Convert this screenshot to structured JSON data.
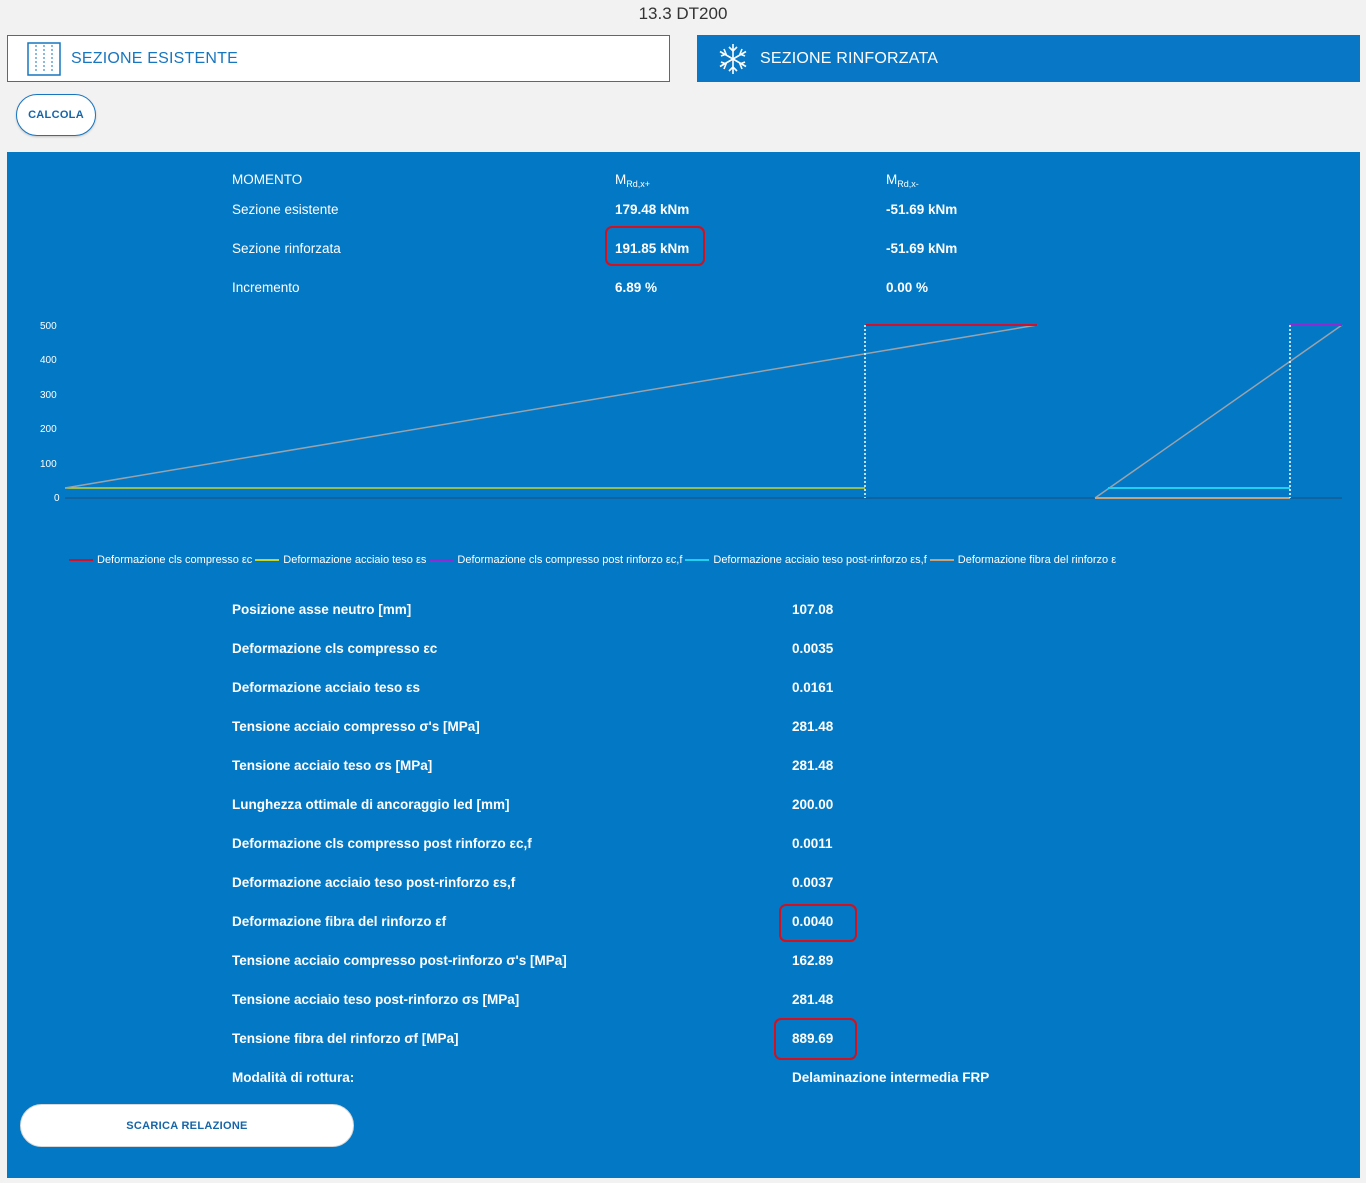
{
  "page": {
    "title": "13.3 DT200"
  },
  "tabs": {
    "existing": {
      "label": "SEZIONE ESISTENTE",
      "icon": "section-columns-icon"
    },
    "reinforced": {
      "label": "SEZIONE RINFORZATA",
      "icon": "snowflake-icon"
    }
  },
  "actions": {
    "calculate_label": "CALCOLA",
    "download_label": "SCARICA RELAZIONE"
  },
  "moment_table": {
    "header": "MOMENTO",
    "col_pos_main": "M",
    "col_pos_sub": "Rd,x+",
    "col_neg_main": "M",
    "col_neg_sub": "Rd,x-",
    "rows": [
      {
        "label": "Sezione esistente",
        "pos": "179.48 kNm",
        "neg": "-51.69 kNm"
      },
      {
        "label": "Sezione rinforzata",
        "pos": "191.85 kNm",
        "neg": "-51.69 kNm"
      },
      {
        "label": "Incremento",
        "pos": "6.89 %",
        "neg": "0.00 %"
      }
    ]
  },
  "chart_data": {
    "type": "line",
    "y_ticks": [
      "500",
      "400",
      "300",
      "200",
      "100",
      "0"
    ],
    "ylim": [
      0,
      500
    ],
    "series": [
      {
        "name": "Deformazione cls compresso εc",
        "color": "#d0112b"
      },
      {
        "name": "Deformazione acciaio teso εs",
        "color": "#c8d42a"
      },
      {
        "name": "Deformazione cls compresso post rinforzo εc,f",
        "color": "#8e2bd6"
      },
      {
        "name": "Deformazione acciaio teso post-rinforzo εs,f",
        "color": "#1fd0f0"
      },
      {
        "name": "Deformazione fibra del rinforzo ε",
        "color": "#c8a27a"
      }
    ],
    "legend_position": "bottom"
  },
  "results": [
    {
      "label": "Posizione asse neutro [mm]",
      "value": "107.08"
    },
    {
      "label": "Deformazione cls compresso εc",
      "value": "0.0035"
    },
    {
      "label": "Deformazione acciaio teso εs",
      "value": "0.0161"
    },
    {
      "label": "Tensione acciaio compresso σ's [MPa]",
      "value": "281.48"
    },
    {
      "label": "Tensione acciaio teso σs [MPa]",
      "value": "281.48"
    },
    {
      "label": "Lunghezza ottimale di ancoraggio led [mm]",
      "value": "200.00"
    },
    {
      "label": "Deformazione cls compresso post rinforzo εc,f",
      "value": "0.0011"
    },
    {
      "label": "Deformazione acciaio teso post-rinforzo εs,f",
      "value": "0.0037"
    },
    {
      "label": "Deformazione fibra del rinforzo εf",
      "value": "0.0040"
    },
    {
      "label": "Tensione acciaio compresso post-rinforzo σ's [MPa]",
      "value": "162.89"
    },
    {
      "label": "Tensione acciaio teso post-rinforzo σs [MPa]",
      "value": "281.48"
    },
    {
      "label": "Tensione fibra del rinforzo σf [MPa]",
      "value": "889.69"
    },
    {
      "label": "Modalità di rottura:",
      "value": "Delaminazione intermedia FRP"
    }
  ]
}
